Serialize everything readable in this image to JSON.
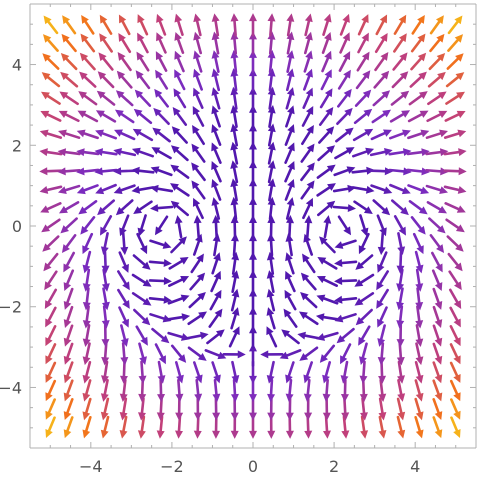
{
  "chart_data": {
    "type": "vector_field",
    "title": "",
    "xlabel": "",
    "ylabel": "",
    "xlim": [
      -5.5,
      5.5
    ],
    "ylim": [
      -5.5,
      5.5
    ],
    "x_ticks": [
      -4,
      -2,
      0,
      2,
      4
    ],
    "y_ticks": [
      -4,
      -2,
      0,
      2,
      4
    ],
    "x_tick_labels": [
      "−4",
      "−2",
      "0",
      "2",
      "4"
    ],
    "y_tick_labels": [
      "−4",
      "−2",
      "0",
      "2",
      "4"
    ],
    "grid": false,
    "legend": "none",
    "field_description": "Vector field with two counter-rotating vortices near (-2,0) and (2,0); arrow color encodes magnitude",
    "grid_x": [
      -5.0,
      -4.55,
      -4.09,
      -3.64,
      -3.18,
      -2.73,
      -2.27,
      -1.82,
      -1.36,
      -0.91,
      -0.45,
      0.0,
      0.45,
      0.91,
      1.36,
      1.82,
      2.27,
      2.73,
      3.18,
      3.64,
      4.09,
      4.55,
      5.0
    ],
    "grid_y": [
      -5.0,
      -4.55,
      -4.09,
      -3.64,
      -3.18,
      -2.73,
      -2.27,
      -1.82,
      -1.36,
      -0.91,
      -0.45,
      0.0,
      0.45,
      0.91,
      1.36,
      1.82,
      2.27,
      2.73,
      3.18,
      3.64,
      4.09,
      4.55,
      5.0
    ],
    "colors": {
      "low": "#3a0ca3",
      "mid": "#7b2cbf",
      "midhigh": "#c2407a",
      "high": "#f2711c",
      "max": "#f6b21a"
    }
  }
}
